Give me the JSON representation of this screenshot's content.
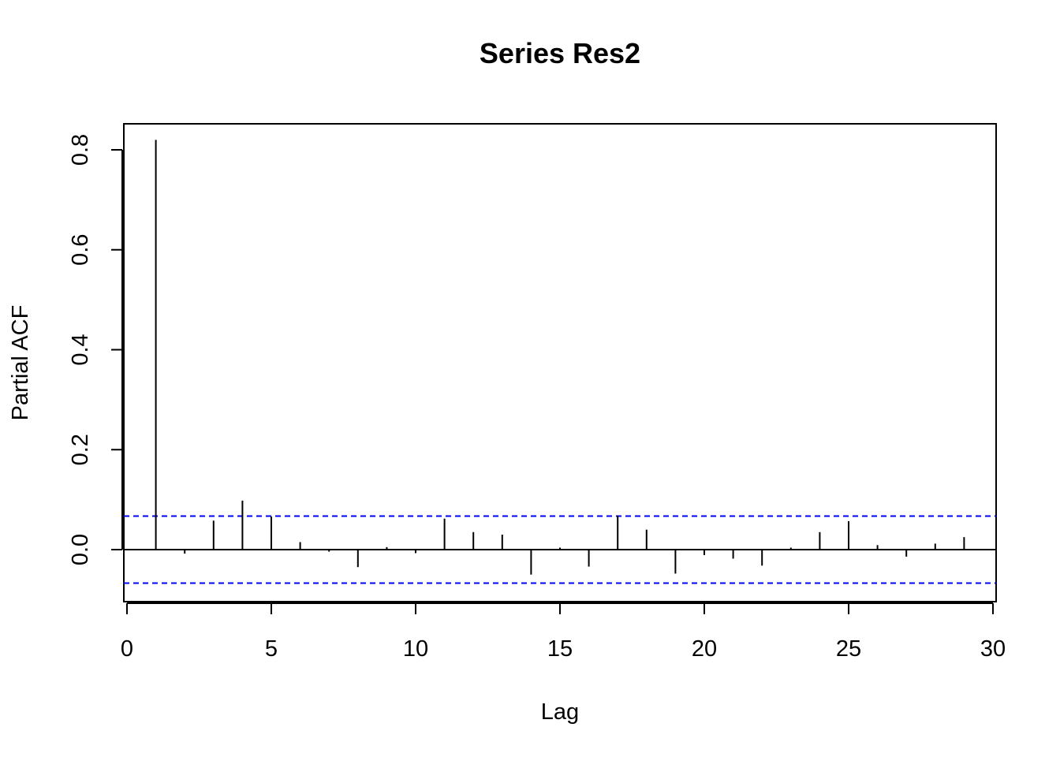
{
  "chart_data": {
    "type": "bar",
    "title": "Series  Res2",
    "xlabel": "Lag",
    "ylabel": "Partial ACF",
    "xlim": [
      0,
      30
    ],
    "ylim": [
      -0.1,
      0.8
    ],
    "x_ticks": [
      0,
      5,
      10,
      15,
      20,
      25,
      30
    ],
    "y_ticks": [
      "0.0",
      "0.2",
      "0.4",
      "0.6",
      "0.8"
    ],
    "x": [
      1,
      2,
      3,
      4,
      5,
      6,
      7,
      8,
      9,
      10,
      11,
      12,
      13,
      14,
      15,
      16,
      17,
      18,
      19,
      20,
      21,
      22,
      23,
      24,
      25,
      26,
      27,
      28,
      29
    ],
    "values": [
      0.82,
      -0.008,
      0.058,
      0.098,
      0.066,
      0.015,
      -0.004,
      -0.035,
      0.005,
      -0.007,
      0.062,
      0.035,
      0.03,
      -0.05,
      0.004,
      -0.034,
      0.068,
      0.04,
      -0.048,
      -0.011,
      -0.018,
      -0.032,
      0.004,
      0.035,
      0.057,
      0.009,
      -0.014,
      0.012,
      0.025
    ],
    "confidence_bound": 0.067,
    "colors": {
      "bars": "#000000",
      "confidence": "#0000ff",
      "zero_line": "#000000"
    },
    "grid": false,
    "legend": "none"
  }
}
